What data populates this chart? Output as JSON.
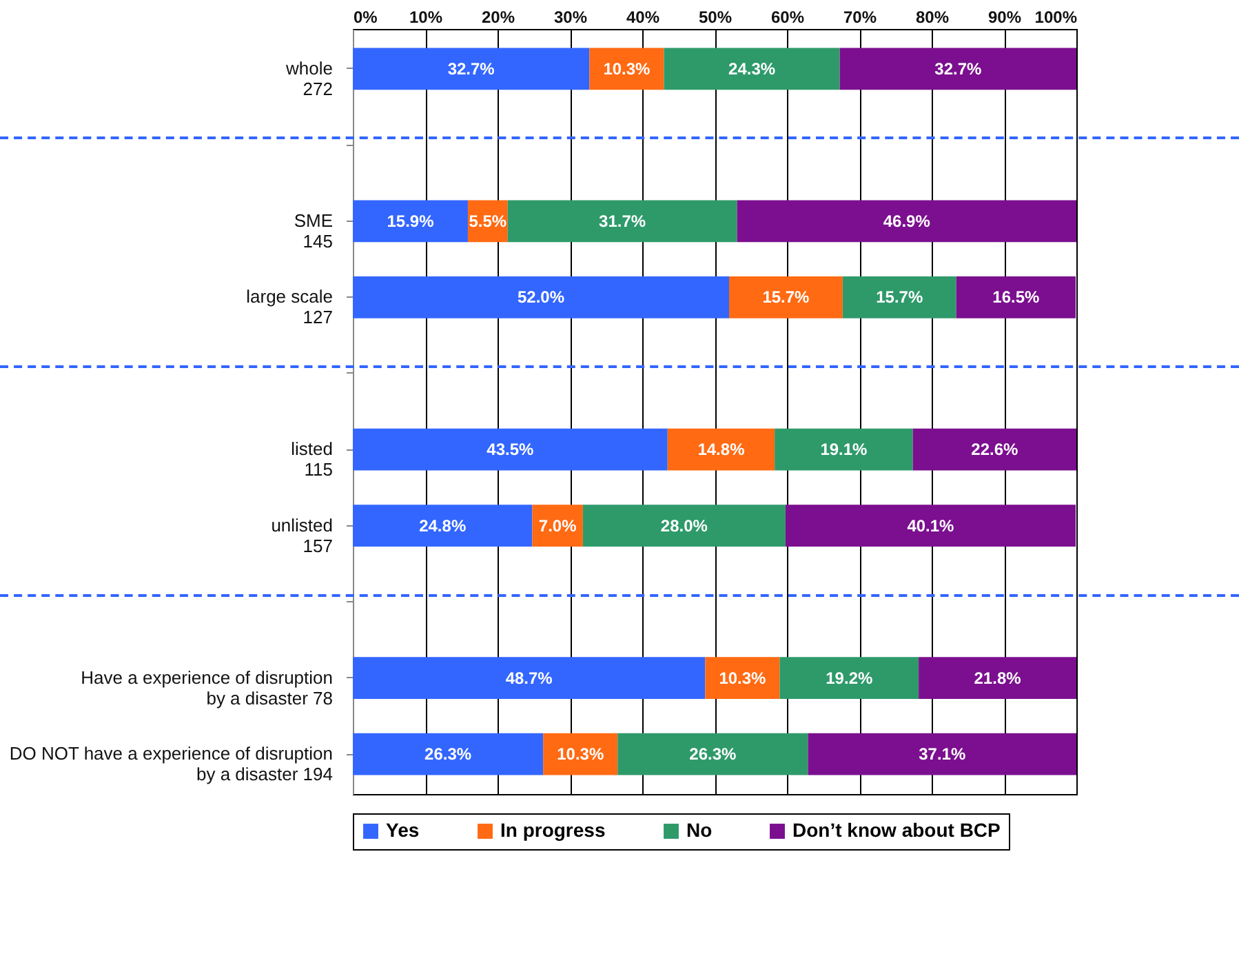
{
  "chart_data": {
    "type": "bar",
    "orientation": "horizontal",
    "stacked": true,
    "categories": [
      "whole\n272",
      null,
      "SME\n145",
      "large  scale\n127",
      null,
      "listed\n115",
      "unlisted\n157",
      null,
      "Have a experience of disruption\nby a disaster    78",
      "DO NOT have a experience of disruption\nby a disaster       194"
    ],
    "series": [
      {
        "name": "Yes",
        "color": "#3366ff",
        "values": [
          32.7,
          null,
          15.9,
          52.0,
          null,
          43.5,
          24.8,
          null,
          48.7,
          26.3
        ],
        "value_labels": [
          "32.7%",
          null,
          "15.9%",
          "52.0%",
          null,
          "43.5%",
          "24.8%",
          null,
          "48.7%",
          "26.3%"
        ]
      },
      {
        "name": "In progress",
        "color": "#ff6a13",
        "values": [
          10.3,
          null,
          5.5,
          15.7,
          null,
          14.8,
          7.0,
          null,
          10.3,
          10.3
        ],
        "value_labels": [
          "10.3%",
          null,
          "5.5%",
          "15.7%",
          null,
          "14.8%",
          "7.0%",
          null,
          "10.3%",
          "10.3%"
        ]
      },
      {
        "name": "No",
        "color": "#2e9a6a",
        "values": [
          24.3,
          null,
          31.7,
          15.7,
          null,
          19.1,
          28.0,
          null,
          19.2,
          26.3
        ],
        "value_labels": [
          "24.3%",
          null,
          "31.7%",
          "15.7%",
          null,
          "19.1%",
          "28.0%",
          null,
          "19.2%",
          "26.3%"
        ]
      },
      {
        "name": "Don’t know about BCP",
        "color": "#7b0f8f",
        "values": [
          32.7,
          null,
          46.9,
          16.5,
          null,
          22.6,
          40.1,
          null,
          21.8,
          37.1
        ],
        "value_labels": [
          "32.7%",
          null,
          "46.9%",
          "16.5%",
          null,
          "22.6%",
          "40.1%",
          null,
          "21.8%",
          "37.1%"
        ]
      }
    ],
    "xlim": [
      0,
      100
    ],
    "xticks": [
      {
        "value": 0,
        "label": "0%"
      },
      {
        "value": 10,
        "label": "10%"
      },
      {
        "value": 20,
        "label": "20%"
      },
      {
        "value": 30,
        "label": "30%"
      },
      {
        "value": 40,
        "label": "40%"
      },
      {
        "value": 50,
        "label": "50%"
      },
      {
        "value": 60,
        "label": "60%"
      },
      {
        "value": 70,
        "label": "70%"
      },
      {
        "value": 80,
        "label": "80%"
      },
      {
        "value": 90,
        "label": "90%"
      },
      {
        "value": 100,
        "label": "100%"
      }
    ],
    "grid": "x",
    "legend": "bottom"
  }
}
